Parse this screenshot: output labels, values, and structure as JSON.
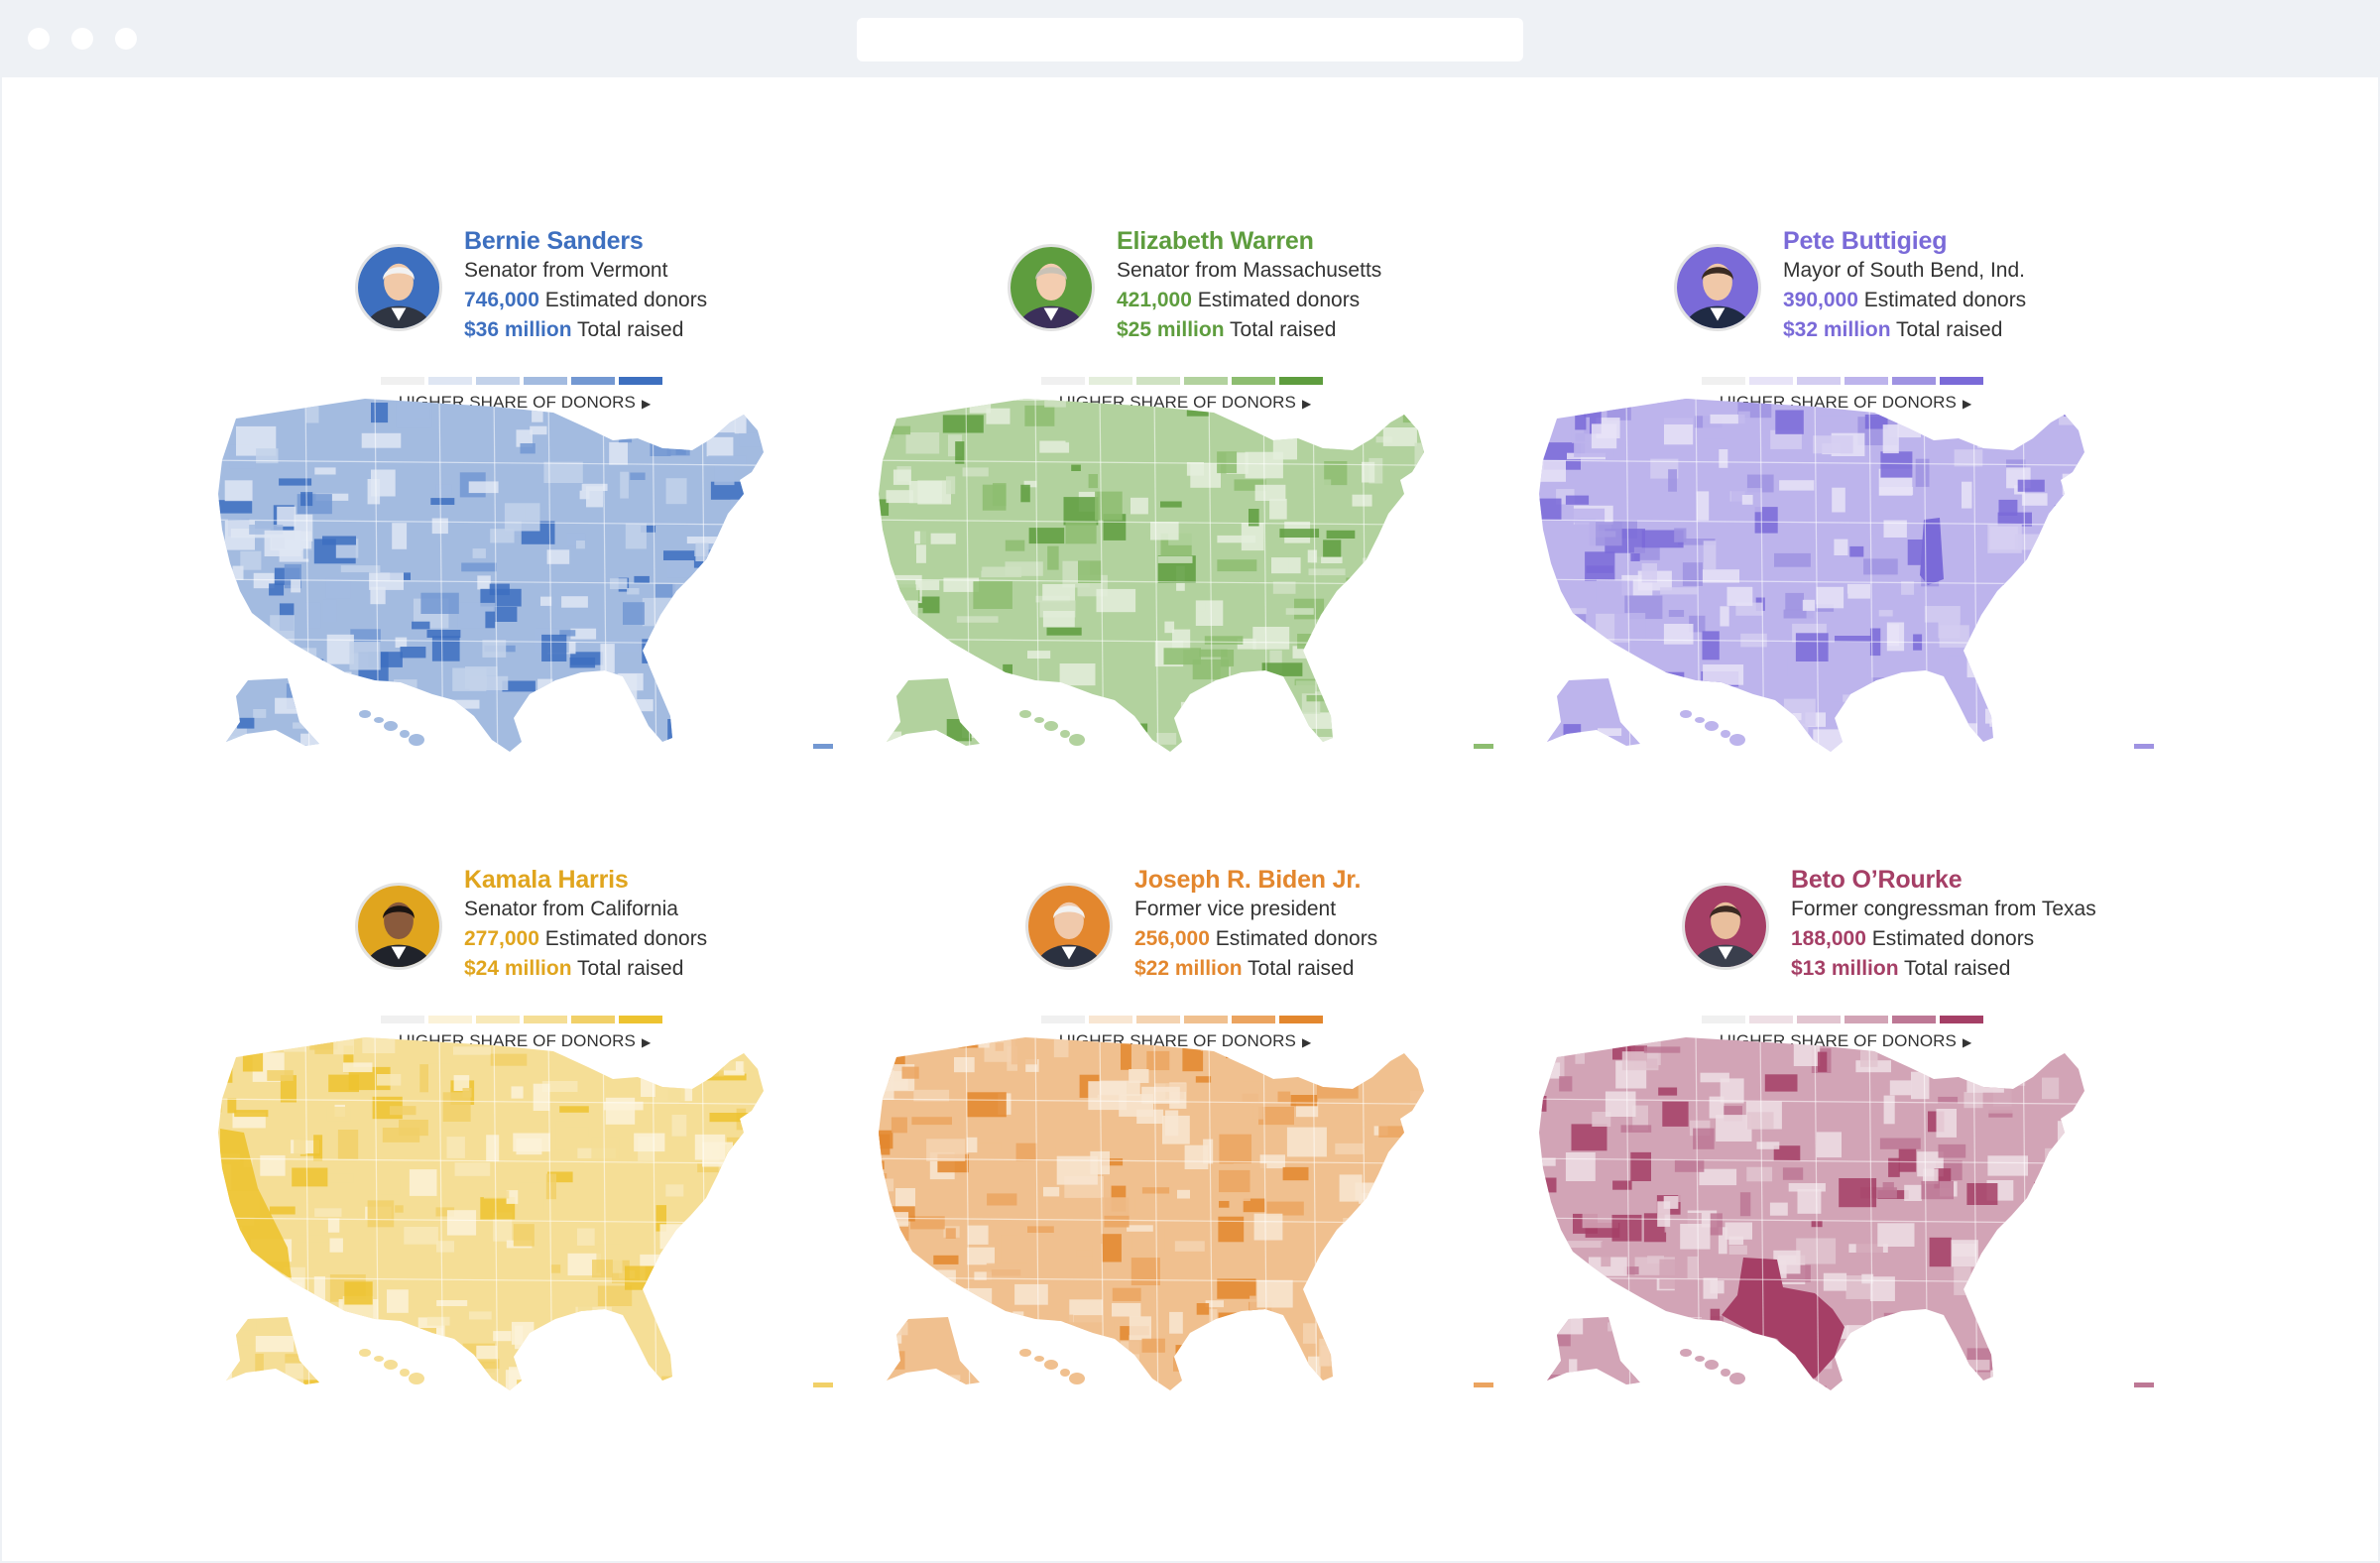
{
  "legend_label": "HIGHER SHARE OF DONORS",
  "legend_arrow": "▶",
  "candidates": [
    {
      "name": "Bernie Sanders",
      "title": "Senator from Vermont",
      "donors_value": "746,000",
      "donors_label": "Estimated donors",
      "raised_value": "$36 million",
      "raised_label": "Total raised",
      "accent": "#3d6fbf",
      "ramp": [
        "#f0f0f0",
        "#dfe6f3",
        "#c3d2ea",
        "#a3bbe0",
        "#7398d2",
        "#3d6fbf"
      ],
      "hotspot": "none"
    },
    {
      "name": "Elizabeth Warren",
      "title": "Senator from Massachusetts",
      "donors_value": "421,000",
      "donors_label": "Estimated donors",
      "raised_value": "$25 million",
      "raised_label": "Total raised",
      "accent": "#5e9d3e",
      "ramp": [
        "#f0f0f0",
        "#e4eedc",
        "#cfe2c2",
        "#b2d29e",
        "#8dbd70",
        "#5e9d3e"
      ],
      "hotspot": "none"
    },
    {
      "name": "Pete Buttigieg",
      "title": "Mayor of South Bend, Ind.",
      "donors_value": "390,000",
      "donors_label": "Estimated donors",
      "raised_value": "$32 million",
      "raised_label": "Total raised",
      "accent": "#7a6ad8",
      "ramp": [
        "#f0f0f0",
        "#e7e3f7",
        "#d3cdf1",
        "#bdb4ec",
        "#9f93e2",
        "#7a6ad8"
      ],
      "hotspot": "Indiana"
    },
    {
      "name": "Kamala Harris",
      "title": "Senator from California",
      "donors_value": "277,000",
      "donors_label": "Estimated donors",
      "raised_value": "$24 million",
      "raised_label": "Total raised",
      "accent": "#e0a51e",
      "ramp": [
        "#f0f0f0",
        "#fbf2d8",
        "#f8e9b9",
        "#f5de96",
        "#f1d068",
        "#edc330"
      ],
      "hotspot": "California"
    },
    {
      "name": "Joseph R. Biden Jr.",
      "title": "Former vice president",
      "donors_value": "256,000",
      "donors_label": "Estimated donors",
      "raised_value": "$22 million",
      "raised_label": "Total raised",
      "accent": "#e3872e",
      "ramp": [
        "#f0f0f0",
        "#f8e6d2",
        "#f4d3b1",
        "#f0c08f",
        "#eba460",
        "#e3872e"
      ],
      "hotspot": "none"
    },
    {
      "name": "Beto O’Rourke",
      "title": "Former congressman from Texas",
      "donors_value": "188,000",
      "donors_label": "Estimated donors",
      "raised_value": "$13 million",
      "raised_label": "Total raised",
      "accent": "#a53f66",
      "ramp": [
        "#f0f0f0",
        "#eedfe5",
        "#e2c5d0",
        "#d2a4b6",
        "#bd7895",
        "#a53f66"
      ],
      "hotspot": "Texas"
    }
  ]
}
